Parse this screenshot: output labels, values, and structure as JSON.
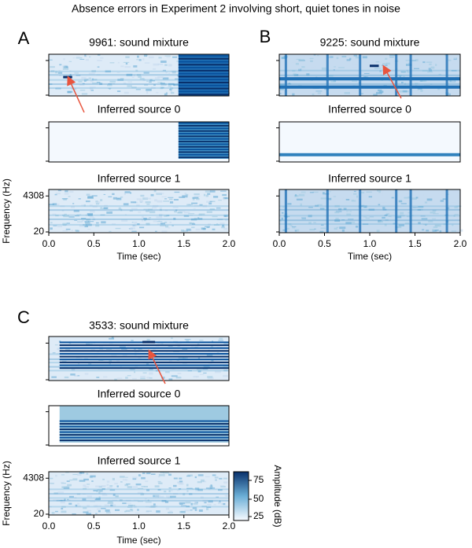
{
  "title": "Absence errors in Experiment 2 involving short, quiet tones in noise",
  "panels": [
    {
      "label": "A",
      "plots": [
        {
          "title": "9961: sound mixture"
        },
        {
          "title": "Inferred source 0"
        },
        {
          "title": "Inferred source 1"
        }
      ],
      "x_axis": {
        "label": "Time (sec)",
        "ticks": [
          "0.0",
          "0.5",
          "1.0",
          "1.5",
          "2.0"
        ]
      },
      "y_axis": {
        "label": "Frequency (Hz)",
        "ticks": [
          "4308",
          "20"
        ]
      }
    },
    {
      "label": "B",
      "plots": [
        {
          "title": "9225: sound mixture"
        },
        {
          "title": "Inferred source 0"
        },
        {
          "title": "Inferred source 1"
        }
      ],
      "x_axis": {
        "label": "Time (sec)",
        "ticks": [
          "0.0",
          "0.5",
          "1.0",
          "1.5",
          "2.0"
        ]
      }
    },
    {
      "label": "C",
      "plots": [
        {
          "title": "3533: sound mixture"
        },
        {
          "title": "Inferred source 0"
        },
        {
          "title": "Inferred source 1"
        }
      ],
      "x_axis": {
        "label": "Time (sec)",
        "ticks": [
          "0.0",
          "0.5",
          "1.0",
          "1.5",
          "2.0"
        ]
      },
      "y_axis": {
        "label": "Frequency (Hz)",
        "ticks": [
          "4308",
          "20"
        ]
      },
      "colorbar": {
        "label": "Amplitude (dB)",
        "ticks": [
          "75",
          "50",
          "25"
        ]
      }
    }
  ]
}
